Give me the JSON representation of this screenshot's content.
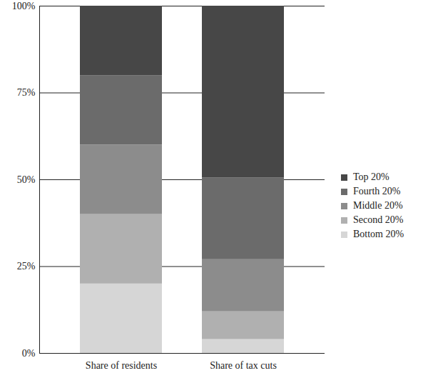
{
  "chart_data": {
    "type": "bar",
    "stacked": true,
    "categories": [
      "Share of residents",
      "Share of tax cuts"
    ],
    "series": [
      {
        "name": "Bottom 20%",
        "color": "#d6d6d6",
        "values": [
          20,
          4
        ]
      },
      {
        "name": "Second 20%",
        "color": "#b0b0b0",
        "values": [
          20,
          8
        ]
      },
      {
        "name": "Middle 20%",
        "color": "#8c8c8c",
        "values": [
          20,
          15
        ]
      },
      {
        "name": "Fourth 20%",
        "color": "#6b6b6b",
        "values": [
          20,
          23.5
        ]
      },
      {
        "name": "Top 20%",
        "color": "#474747",
        "values": [
          20,
          49.5
        ]
      }
    ],
    "ylim": [
      0,
      100
    ],
    "yticks": [
      {
        "value": 0,
        "label": "0%"
      },
      {
        "value": 25,
        "label": "25%"
      },
      {
        "value": 50,
        "label": "50%"
      },
      {
        "value": 75,
        "label": "75%"
      },
      {
        "value": 100,
        "label": "100%"
      }
    ],
    "grid": true,
    "legend": "right"
  }
}
